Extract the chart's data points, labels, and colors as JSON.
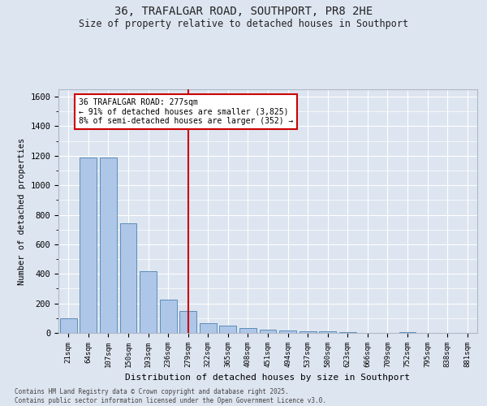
{
  "title_line1": "36, TRAFALGAR ROAD, SOUTHPORT, PR8 2HE",
  "title_line2": "Size of property relative to detached houses in Southport",
  "xlabel": "Distribution of detached houses by size in Southport",
  "ylabel": "Number of detached properties",
  "categories": [
    "21sqm",
    "64sqm",
    "107sqm",
    "150sqm",
    "193sqm",
    "236sqm",
    "279sqm",
    "322sqm",
    "365sqm",
    "408sqm",
    "451sqm",
    "494sqm",
    "537sqm",
    "580sqm",
    "623sqm",
    "666sqm",
    "709sqm",
    "752sqm",
    "795sqm",
    "838sqm",
    "881sqm"
  ],
  "values": [
    100,
    1190,
    1190,
    740,
    420,
    225,
    150,
    65,
    48,
    32,
    20,
    17,
    10,
    10,
    8,
    0,
    0,
    5,
    0,
    0,
    0
  ],
  "bar_color": "#aec6e8",
  "bar_edge_color": "#5b8db8",
  "background_color": "#dde5f0",
  "grid_color": "#ffffff",
  "vline_x_index": 6,
  "vline_color": "#cc0000",
  "annotation_text": "36 TRAFALGAR ROAD: 277sqm\n← 91% of detached houses are smaller (3,825)\n8% of semi-detached houses are larger (352) →",
  "annotation_box_color": "#ffffff",
  "annotation_box_edge_color": "#cc0000",
  "ylim": [
    0,
    1650
  ],
  "yticks": [
    0,
    200,
    400,
    600,
    800,
    1000,
    1200,
    1400,
    1600
  ],
  "footer_line1": "Contains HM Land Registry data © Crown copyright and database right 2025.",
  "footer_line2": "Contains public sector information licensed under the Open Government Licence v3.0."
}
